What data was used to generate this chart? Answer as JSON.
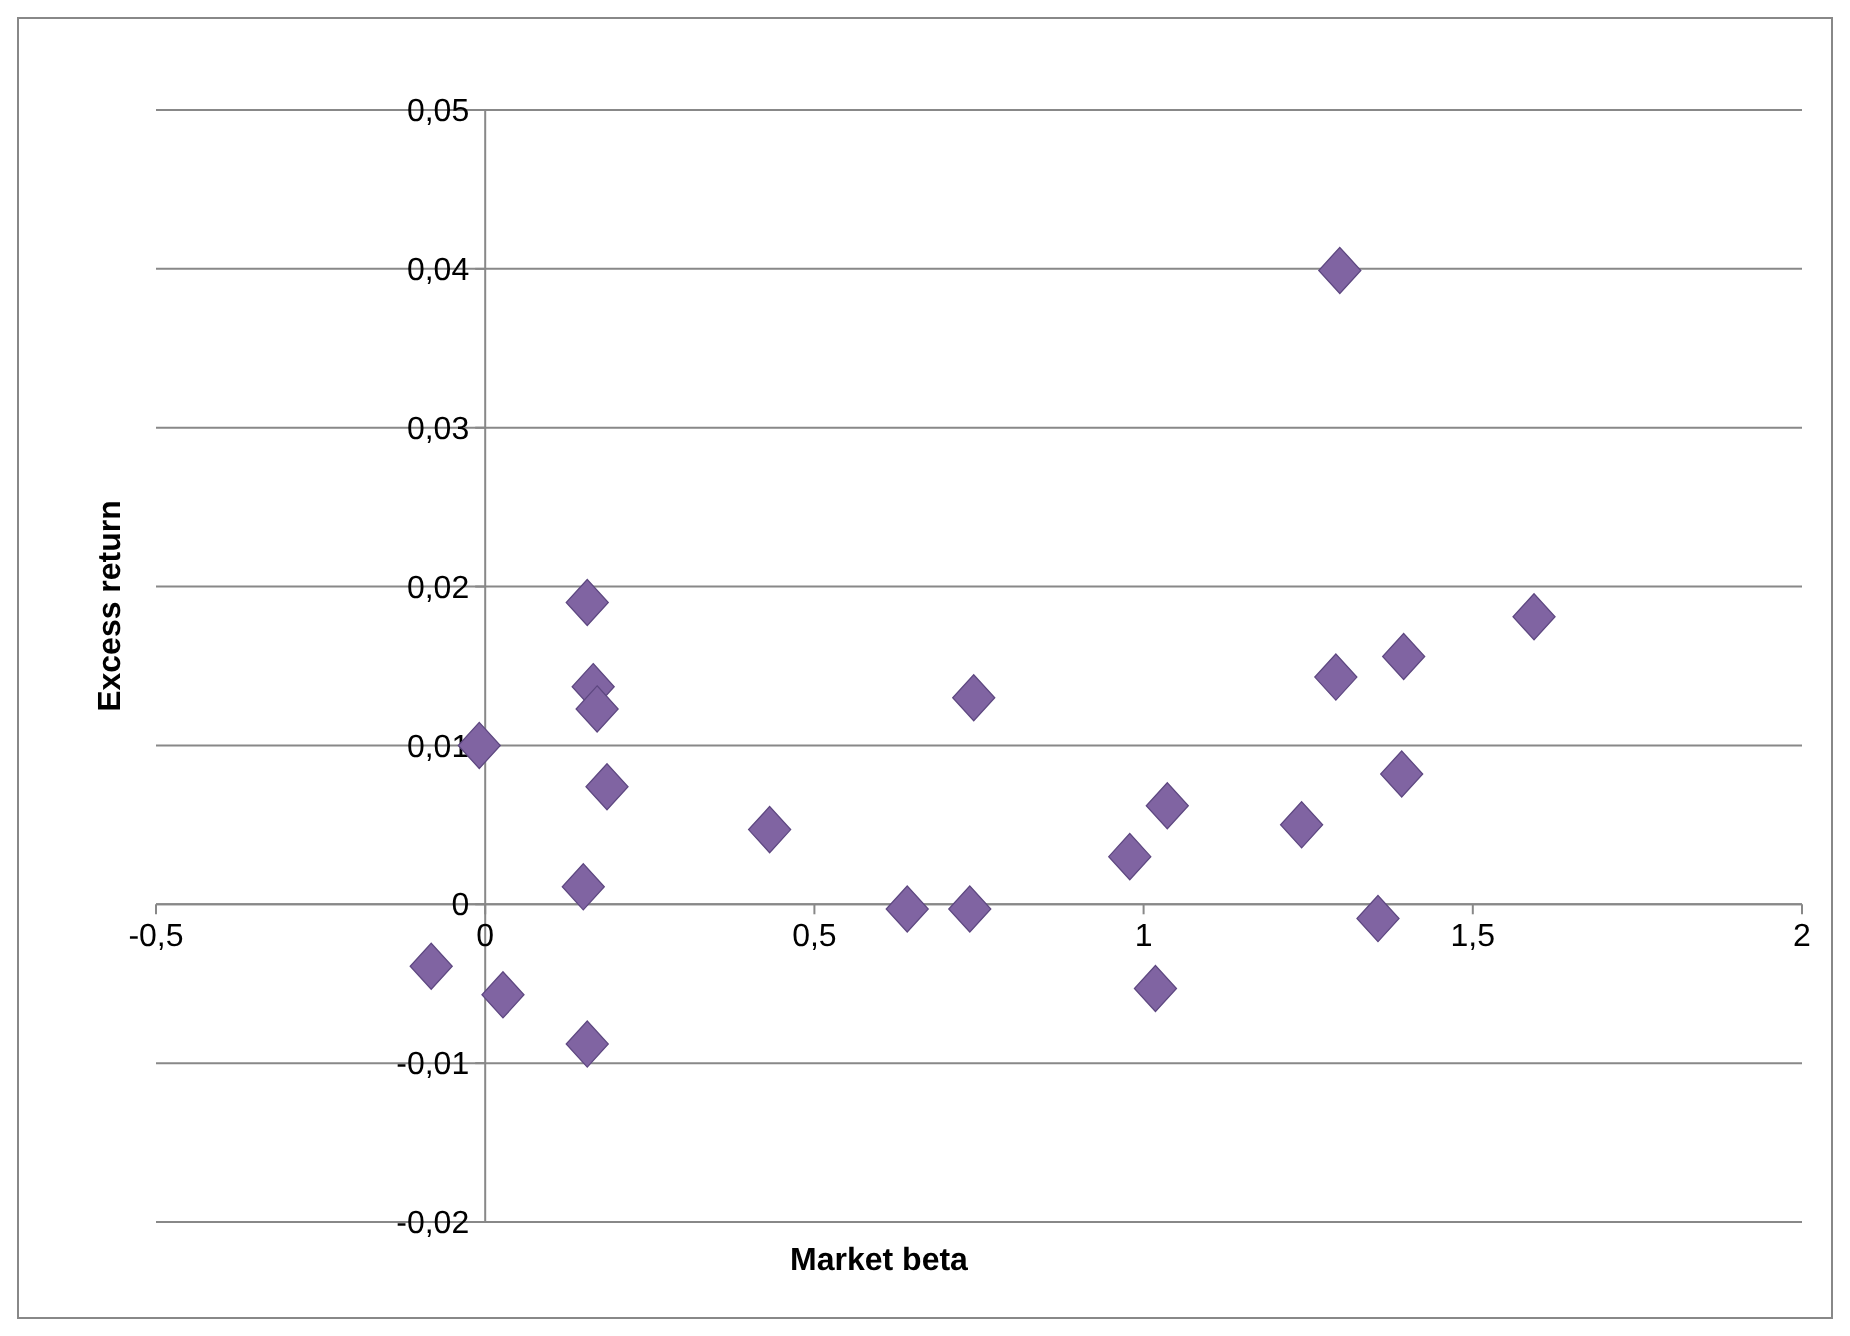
{
  "chart_data": {
    "type": "scatter",
    "xlabel": "Market beta",
    "ylabel": "Excess return",
    "x": [
      1.298,
      0.155,
      1.593,
      1.395,
      1.292,
      0.164,
      0.17,
      0.742,
      -0.009,
      0.185,
      1.392,
      0.432,
      1.036,
      1.24,
      0.979,
      0.149,
      0.641,
      0.736,
      1.356,
      -0.082,
      0.027,
      1.018,
      0.155
    ],
    "series": [
      {
        "color": "#8064a2",
        "values": [
          0.0399,
          0.019,
          0.0181,
          0.0156,
          0.0143,
          0.0137,
          0.0123,
          0.013,
          0.01,
          0.0074,
          0.0082,
          0.0047,
          0.0062,
          0.005,
          0.003,
          0.0011,
          -0.0003,
          -0.0003,
          -0.0009,
          -0.0039,
          -0.0057,
          -0.0053,
          -0.0088
        ]
      }
    ],
    "xlim": [
      -0.5,
      2
    ],
    "ylim": [
      -0.02,
      0.05
    ],
    "xticks": [
      {
        "value": -0.5,
        "label": "-0,5"
      },
      0,
      {
        "value": 0.5,
        "label": "0,5"
      },
      1,
      {
        "value": 1.5,
        "label": "1,5"
      },
      2
    ],
    "yticks": [
      {
        "value": -0.02,
        "label": "-0,02"
      },
      {
        "value": -0.01,
        "label": "-0,01"
      },
      0,
      {
        "value": 0.01,
        "label": "0,01"
      },
      {
        "value": 0.02,
        "label": "0,02"
      },
      {
        "value": 0.03,
        "label": "0,03"
      },
      {
        "value": 0.04,
        "label": "0,04"
      },
      {
        "value": 0.05,
        "label": "0,05"
      }
    ],
    "grid": "y",
    "marker": "diamond"
  }
}
